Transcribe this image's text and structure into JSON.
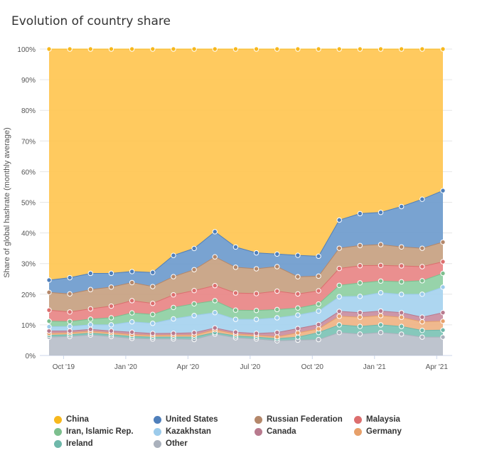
{
  "title": "Evolution of country share",
  "chart_data": {
    "type": "area",
    "stacking": "percent",
    "ylabel": "Share of global hashrate (monthly average)",
    "ylim": [
      0,
      100
    ],
    "y_ticks": [
      "0%",
      "10%",
      "20%",
      "30%",
      "40%",
      "50%",
      "60%",
      "70%",
      "80%",
      "90%",
      "100%"
    ],
    "x_ticks": [
      "Oct '19",
      "Jan '20",
      "Apr '20",
      "Jul '20",
      "Oct '20",
      "Jan '21",
      "Apr '21"
    ],
    "x": [
      "2019-09",
      "2019-10",
      "2019-11",
      "2019-12",
      "2020-01",
      "2020-02",
      "2020-03",
      "2020-04",
      "2020-05",
      "2020-06",
      "2020-07",
      "2020-08",
      "2020-09",
      "2020-10",
      "2020-11",
      "2020-12",
      "2021-01",
      "2021-02",
      "2021-03",
      "2021-04"
    ],
    "legend_position": "bottom",
    "grid": true,
    "series": [
      {
        "name": "Other",
        "color": "#b9bfca",
        "values": [
          6.0,
          6.2,
          6.6,
          6.2,
          5.6,
          5.4,
          5.4,
          5.2,
          7.0,
          5.8,
          5.4,
          4.8,
          5.0,
          5.2,
          7.5,
          7.0,
          7.5,
          7.0,
          6.0,
          6.0
        ]
      },
      {
        "name": "Ireland",
        "color": "#7cc3b5",
        "values": [
          0.6,
          0.6,
          0.6,
          0.6,
          0.6,
          0.6,
          0.6,
          0.8,
          0.5,
          0.6,
          0.6,
          0.7,
          1.0,
          2.3,
          2.5,
          2.5,
          2.5,
          2.5,
          2.2,
          2.3
        ]
      },
      {
        "name": "Germany",
        "color": "#efb384",
        "values": [
          0.6,
          0.6,
          0.6,
          0.6,
          0.6,
          0.6,
          0.6,
          0.6,
          0.9,
          0.6,
          0.6,
          0.6,
          1.4,
          1.2,
          2.8,
          3.0,
          3.0,
          3.0,
          2.8,
          2.9
        ]
      },
      {
        "name": "Canada",
        "color": "#c98ea1",
        "values": [
          0.8,
          0.6,
          0.6,
          0.6,
          0.8,
          0.6,
          0.6,
          0.8,
          0.6,
          0.6,
          0.6,
          1.4,
          1.4,
          1.4,
          1.6,
          1.5,
          1.5,
          1.5,
          1.5,
          2.8
        ]
      },
      {
        "name": "Kazakhstan",
        "color": "#a6d2ef",
        "values": [
          1.4,
          1.5,
          1.5,
          2.0,
          3.4,
          3.3,
          4.7,
          5.6,
          5.0,
          4.2,
          4.6,
          4.8,
          4.4,
          4.4,
          4.8,
          5.3,
          6.0,
          6.0,
          7.5,
          8.3
        ]
      },
      {
        "name": "Iran, Islamic Rep.",
        "color": "#8ecfa3",
        "values": [
          1.8,
          1.6,
          1.8,
          2.3,
          2.9,
          2.9,
          3.7,
          3.8,
          3.9,
          3.0,
          2.9,
          2.7,
          2.3,
          2.3,
          3.7,
          4.4,
          3.8,
          4.1,
          4.4,
          4.5
        ]
      },
      {
        "name": "Malaysia",
        "color": "#e88686",
        "values": [
          3.6,
          3.1,
          3.3,
          3.8,
          4.0,
          3.6,
          4.1,
          4.3,
          4.9,
          5.6,
          5.5,
          6.0,
          4.6,
          4.3,
          5.5,
          5.6,
          5.1,
          5.2,
          4.6,
          3.8
        ]
      },
      {
        "name": "Russian Federation",
        "color": "#c7a181",
        "values": [
          5.8,
          5.9,
          6.2,
          6.2,
          5.9,
          5.5,
          5.9,
          6.8,
          9.4,
          8.4,
          8.1,
          8.0,
          5.6,
          4.8,
          6.6,
          6.6,
          6.8,
          6.2,
          6.0,
          6.4
        ]
      },
      {
        "name": "United States",
        "color": "#6e9bcd",
        "values": [
          4.0,
          5.3,
          5.2,
          4.5,
          3.6,
          4.6,
          6.9,
          6.9,
          8.2,
          6.6,
          5.2,
          4.1,
          7.0,
          6.5,
          9.2,
          10.4,
          10.5,
          13.2,
          16.0,
          16.8
        ]
      },
      {
        "name": "China",
        "color": "#ffc651",
        "values": [
          75.4,
          74.6,
          72.1,
          73.1,
          72.6,
          72.9,
          67.0,
          64.8,
          59.6,
          64.6,
          66.5,
          66.9,
          67.3,
          67.6,
          55.8,
          53.7,
          53.3,
          51.5,
          49.0,
          46.2
        ]
      }
    ]
  },
  "legend": [
    {
      "name": "China",
      "color": "#f7b81d"
    },
    {
      "name": "United States",
      "color": "#4f7fbb"
    },
    {
      "name": "Russian Federation",
      "color": "#b4876a"
    },
    {
      "name": "Malaysia",
      "color": "#dc6e6e"
    },
    {
      "name": "Iran, Islamic Rep.",
      "color": "#7dbf8e"
    },
    {
      "name": "Kazakhstan",
      "color": "#9ccbeb"
    },
    {
      "name": "Canada",
      "color": "#b87a8e"
    },
    {
      "name": "Germany",
      "color": "#e7a06a"
    },
    {
      "name": "Ireland",
      "color": "#6fb8aa"
    },
    {
      "name": "Other",
      "color": "#aab1bc"
    }
  ]
}
